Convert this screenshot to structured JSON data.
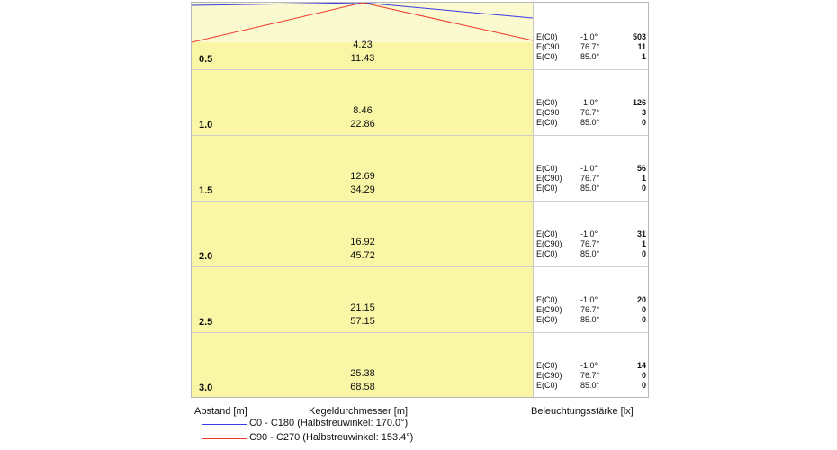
{
  "headers": {
    "distance": "Abstand [m]",
    "diameter": "Kegeldurchmesser [m]",
    "illuminance": "Beleuchtungsstärke [lx]"
  },
  "legend": [
    {
      "label": "C0 - C180 (Halbstreuwinkel: 170.0°)",
      "color": "#3a3ae8"
    },
    {
      "label": "C90 - C270 (Halbstreuwinkel: 153.4°)",
      "color": "#ee3a2a"
    }
  ],
  "rows": [
    {
      "distance": "0.5",
      "diam1": "4.23",
      "diam2": "11.43",
      "ill": [
        {
          "name": "E(C0)",
          "angle": "-1.0°",
          "value": "503"
        },
        {
          "name": "E(C90",
          "angle": "76.7°",
          "value": "11"
        },
        {
          "name": "E(C0)",
          "angle": "85.0°",
          "value": "1"
        }
      ]
    },
    {
      "distance": "1.0",
      "diam1": "8.46",
      "diam2": "22.86",
      "ill": [
        {
          "name": "E(C0)",
          "angle": "-1.0°",
          "value": "126"
        },
        {
          "name": "E(C90",
          "angle": "76.7°",
          "value": "3"
        },
        {
          "name": "E(C0)",
          "angle": "85.0°",
          "value": "0"
        }
      ]
    },
    {
      "distance": "1.5",
      "diam1": "12.69",
      "diam2": "34.29",
      "ill": [
        {
          "name": "E(C0)",
          "angle": "-1.0°",
          "value": "56"
        },
        {
          "name": "E(C90)",
          "angle": "76.7°",
          "value": "1"
        },
        {
          "name": "E(C0)",
          "angle": "85.0°",
          "value": "0"
        }
      ]
    },
    {
      "distance": "2.0",
      "diam1": "16.92",
      "diam2": "45.72",
      "ill": [
        {
          "name": "E(C0)",
          "angle": "-1.0°",
          "value": "31"
        },
        {
          "name": "E(C90)",
          "angle": "76.7°",
          "value": "1"
        },
        {
          "name": "E(C0)",
          "angle": "85.0°",
          "value": "0"
        }
      ]
    },
    {
      "distance": "2.5",
      "diam1": "21.15",
      "diam2": "57.15",
      "ill": [
        {
          "name": "E(C0)",
          "angle": "-1.0°",
          "value": "20"
        },
        {
          "name": "E(C90)",
          "angle": "76.7°",
          "value": "0"
        },
        {
          "name": "E(C0)",
          "angle": "85.0°",
          "value": "0"
        }
      ]
    },
    {
      "distance": "3.0",
      "diam1": "25.38",
      "diam2": "68.58",
      "ill": [
        {
          "name": "E(C0)",
          "angle": "-1.0°",
          "value": "14"
        },
        {
          "name": "E(C90)",
          "angle": "76.7°",
          "value": "0"
        },
        {
          "name": "E(C0)",
          "angle": "85.0°",
          "value": "0"
        }
      ]
    }
  ]
}
